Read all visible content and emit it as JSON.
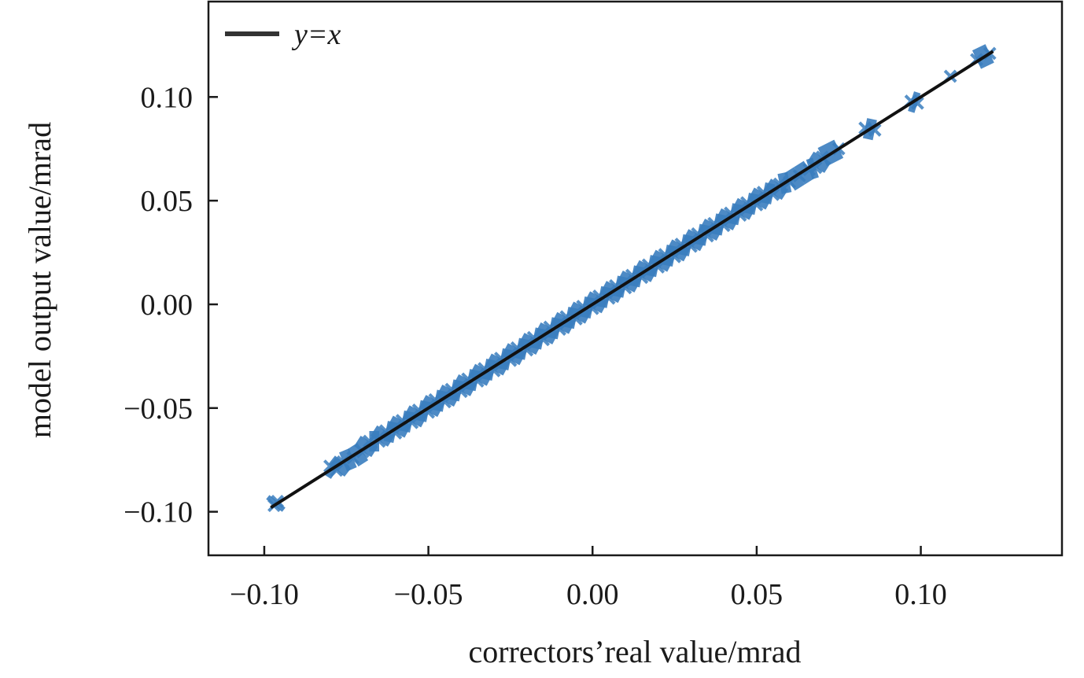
{
  "chart_data": {
    "type": "scatter",
    "title": "",
    "xlabel": "correctors’real value/mrad",
    "ylabel": "model output value/mrad",
    "xlim": [
      -0.117,
      0.143
    ],
    "ylim": [
      -0.121,
      0.146
    ],
    "xticks": [
      -0.1,
      -0.05,
      0.0,
      0.05,
      0.1
    ],
    "xtick_labels": [
      "−0.10",
      "−0.05",
      "0.00",
      "0.05",
      "0.10"
    ],
    "yticks": [
      -0.1,
      -0.05,
      0.0,
      0.05,
      0.1
    ],
    "ytick_labels": [
      "−0.10",
      "−0.05",
      "0.00",
      "0.05",
      "0.10"
    ],
    "grid": false,
    "legend": {
      "position": "top-left",
      "entries": [
        {
          "label": "y=x",
          "color": "#222222"
        }
      ]
    },
    "reference_line": {
      "label": "y=x",
      "range": [
        -0.098,
        0.122
      ],
      "color": "#111111"
    },
    "marker": "x",
    "marker_color": "#3a7ebf",
    "points": [
      [
        -0.097,
        -0.097
      ],
      [
        -0.096,
        -0.095
      ],
      [
        -0.08,
        -0.078
      ],
      [
        -0.078,
        -0.08
      ],
      [
        -0.076,
        -0.076
      ],
      [
        -0.073,
        -0.074
      ],
      [
        -0.07,
        -0.071
      ],
      [
        -0.068,
        -0.066
      ],
      [
        -0.065,
        -0.066
      ],
      [
        -0.063,
        -0.061
      ],
      [
        -0.06,
        -0.062
      ],
      [
        -0.058,
        -0.056
      ],
      [
        -0.055,
        -0.057
      ],
      [
        -0.053,
        -0.051
      ],
      [
        -0.05,
        -0.052
      ],
      [
        -0.048,
        -0.046
      ],
      [
        -0.045,
        -0.047
      ],
      [
        -0.043,
        -0.041
      ],
      [
        -0.04,
        -0.042
      ],
      [
        -0.038,
        -0.036
      ],
      [
        -0.035,
        -0.037
      ],
      [
        -0.033,
        -0.031
      ],
      [
        -0.03,
        -0.032
      ],
      [
        -0.028,
        -0.026
      ],
      [
        -0.025,
        -0.027
      ],
      [
        -0.023,
        -0.021
      ],
      [
        -0.02,
        -0.022
      ],
      [
        -0.018,
        -0.016
      ],
      [
        -0.015,
        -0.017
      ],
      [
        -0.013,
        -0.011
      ],
      [
        -0.01,
        -0.012
      ],
      [
        -0.008,
        -0.006
      ],
      [
        -0.005,
        -0.007
      ],
      [
        -0.003,
        -0.001
      ],
      [
        0.0,
        -0.002
      ],
      [
        0.002,
        0.004
      ],
      [
        0.005,
        0.003
      ],
      [
        0.007,
        0.009
      ],
      [
        0.01,
        0.008
      ],
      [
        0.012,
        0.014
      ],
      [
        0.015,
        0.013
      ],
      [
        0.017,
        0.019
      ],
      [
        0.02,
        0.018
      ],
      [
        0.022,
        0.024
      ],
      [
        0.025,
        0.023
      ],
      [
        0.027,
        0.029
      ],
      [
        0.03,
        0.028
      ],
      [
        0.032,
        0.034
      ],
      [
        0.035,
        0.033
      ],
      [
        0.037,
        0.039
      ],
      [
        0.04,
        0.038
      ],
      [
        0.042,
        0.044
      ],
      [
        0.045,
        0.043
      ],
      [
        0.047,
        0.049
      ],
      [
        0.05,
        0.048
      ],
      [
        0.052,
        0.054
      ],
      [
        0.055,
        0.053
      ],
      [
        0.057,
        0.058
      ],
      [
        0.06,
        0.059
      ],
      [
        0.063,
        0.062
      ],
      [
        0.066,
        0.065
      ],
      [
        0.068,
        0.066
      ],
      [
        0.07,
        0.071
      ],
      [
        0.075,
        0.075
      ],
      [
        0.083,
        0.085
      ],
      [
        0.086,
        0.084
      ],
      [
        0.097,
        0.098
      ],
      [
        0.099,
        0.097
      ],
      [
        0.109,
        0.11
      ],
      [
        0.117,
        0.118
      ],
      [
        0.121,
        0.121
      ]
    ]
  }
}
